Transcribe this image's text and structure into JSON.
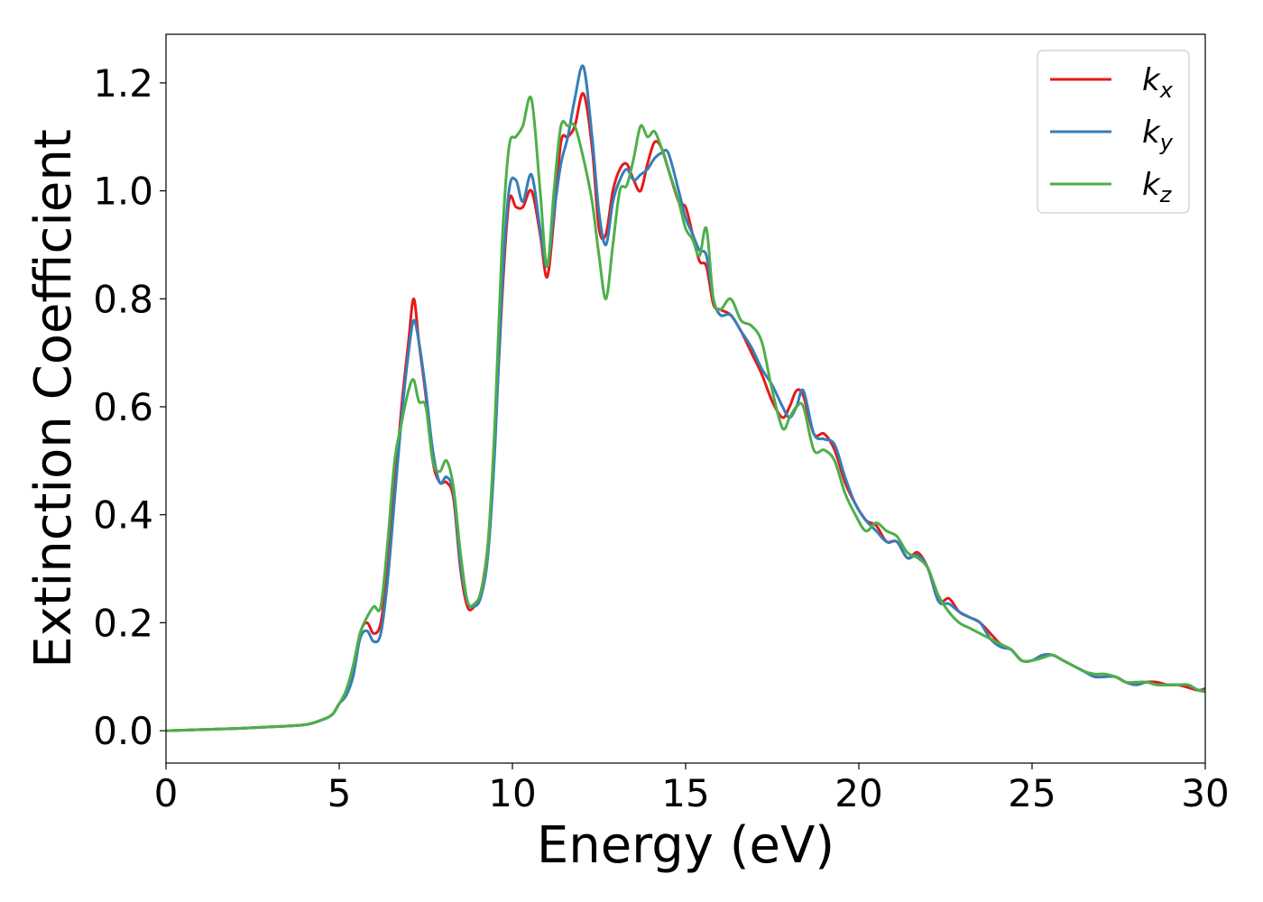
{
  "chart_data": {
    "type": "line",
    "xlabel": "Energy (eV)",
    "ylabel": "Extinction Coefficient",
    "xlim": [
      0,
      30
    ],
    "ylim": [
      -0.06,
      1.29
    ],
    "xticks": [
      0,
      5,
      10,
      15,
      20,
      25,
      30
    ],
    "yticks": [
      "0.0",
      "0.2",
      "0.4",
      "0.6",
      "0.8",
      "1.0",
      "1.2"
    ],
    "grid": false,
    "legend_position": "top-right",
    "series": [
      {
        "name": "k_x",
        "base": "k",
        "sub": "x",
        "color": "#e41a1c",
        "x": [
          0,
          1,
          2,
          3,
          4,
          4.5,
          4.8,
          5.0,
          5.2,
          5.4,
          5.6,
          5.8,
          6.0,
          6.2,
          6.4,
          6.6,
          6.8,
          7.0,
          7.15,
          7.3,
          7.5,
          7.7,
          7.9,
          8.1,
          8.3,
          8.5,
          8.7,
          8.9,
          9.1,
          9.3,
          9.5,
          9.7,
          9.9,
          10.1,
          10.3,
          10.55,
          10.8,
          11.0,
          11.2,
          11.4,
          11.6,
          11.8,
          12.05,
          12.3,
          12.5,
          12.7,
          12.9,
          13.1,
          13.3,
          13.5,
          13.7,
          13.9,
          14.1,
          14.3,
          14.5,
          14.8,
          15.0,
          15.2,
          15.4,
          15.6,
          15.8,
          16.0,
          16.3,
          16.6,
          16.9,
          17.2,
          17.5,
          17.8,
          18.0,
          18.2,
          18.4,
          18.7,
          19.0,
          19.3,
          19.6,
          19.9,
          20.2,
          20.5,
          20.8,
          21.1,
          21.4,
          21.7,
          22.0,
          22.3,
          22.6,
          22.9,
          23.2,
          23.5,
          23.8,
          24.1,
          24.4,
          24.7,
          25.0,
          25.3,
          25.6,
          25.9,
          26.2,
          26.5,
          26.8,
          27.1,
          27.4,
          27.7,
          28.0,
          28.3,
          28.6,
          28.9,
          29.2,
          29.5,
          29.8,
          30
        ],
        "y": [
          0.0,
          0.002,
          0.004,
          0.007,
          0.011,
          0.02,
          0.03,
          0.05,
          0.07,
          0.11,
          0.18,
          0.2,
          0.18,
          0.2,
          0.3,
          0.45,
          0.6,
          0.72,
          0.8,
          0.72,
          0.62,
          0.5,
          0.46,
          0.46,
          0.43,
          0.3,
          0.23,
          0.23,
          0.26,
          0.35,
          0.55,
          0.8,
          0.98,
          0.97,
          0.97,
          1.0,
          0.92,
          0.84,
          0.95,
          1.09,
          1.1,
          1.12,
          1.18,
          1.08,
          0.93,
          0.92,
          1.0,
          1.04,
          1.05,
          1.02,
          1.0,
          1.05,
          1.09,
          1.08,
          1.04,
          0.98,
          0.97,
          0.92,
          0.87,
          0.86,
          0.79,
          0.78,
          0.77,
          0.74,
          0.7,
          0.66,
          0.61,
          0.58,
          0.6,
          0.63,
          0.62,
          0.55,
          0.55,
          0.52,
          0.46,
          0.42,
          0.39,
          0.38,
          0.35,
          0.35,
          0.32,
          0.33,
          0.3,
          0.24,
          0.245,
          0.22,
          0.21,
          0.2,
          0.18,
          0.16,
          0.15,
          0.13,
          0.13,
          0.14,
          0.14,
          0.13,
          0.12,
          0.11,
          0.1,
          0.1,
          0.1,
          0.09,
          0.085,
          0.09,
          0.09,
          0.085,
          0.085,
          0.08,
          0.075,
          0.078
        ]
      },
      {
        "name": "k_y",
        "base": "k",
        "sub": "y",
        "color": "#377eb8",
        "x": [
          0,
          1,
          2,
          3,
          4,
          4.5,
          4.8,
          5.0,
          5.2,
          5.4,
          5.6,
          5.8,
          6.0,
          6.2,
          6.4,
          6.6,
          6.8,
          7.0,
          7.15,
          7.3,
          7.5,
          7.7,
          7.9,
          8.1,
          8.3,
          8.5,
          8.7,
          8.9,
          9.1,
          9.3,
          9.5,
          9.7,
          9.9,
          10.1,
          10.3,
          10.55,
          10.8,
          11.0,
          11.2,
          11.4,
          11.6,
          11.8,
          12.05,
          12.3,
          12.5,
          12.7,
          12.9,
          13.1,
          13.3,
          13.5,
          13.7,
          13.9,
          14.1,
          14.3,
          14.5,
          14.8,
          15.0,
          15.2,
          15.4,
          15.6,
          15.8,
          16.0,
          16.3,
          16.6,
          16.9,
          17.2,
          17.5,
          17.8,
          18.0,
          18.2,
          18.4,
          18.7,
          19.0,
          19.3,
          19.6,
          19.9,
          20.2,
          20.5,
          20.8,
          21.1,
          21.4,
          21.7,
          22.0,
          22.3,
          22.6,
          22.9,
          23.2,
          23.5,
          23.8,
          24.1,
          24.4,
          24.7,
          25.0,
          25.3,
          25.6,
          25.9,
          26.2,
          26.5,
          26.8,
          27.1,
          27.4,
          27.7,
          28.0,
          28.3,
          28.6,
          28.9,
          29.2,
          29.5,
          29.8,
          30
        ],
        "y": [
          0.0,
          0.002,
          0.004,
          0.007,
          0.011,
          0.02,
          0.03,
          0.05,
          0.065,
          0.1,
          0.17,
          0.185,
          0.165,
          0.18,
          0.28,
          0.43,
          0.58,
          0.7,
          0.76,
          0.72,
          0.63,
          0.52,
          0.46,
          0.47,
          0.44,
          0.31,
          0.24,
          0.23,
          0.25,
          0.33,
          0.53,
          0.82,
          1.0,
          1.02,
          0.98,
          1.03,
          0.93,
          0.86,
          0.96,
          1.05,
          1.1,
          1.17,
          1.23,
          1.1,
          0.96,
          0.9,
          0.98,
          1.02,
          1.04,
          1.02,
          1.03,
          1.04,
          1.06,
          1.07,
          1.07,
          1.0,
          0.95,
          0.92,
          0.89,
          0.88,
          0.8,
          0.77,
          0.77,
          0.74,
          0.71,
          0.67,
          0.64,
          0.6,
          0.58,
          0.6,
          0.63,
          0.55,
          0.54,
          0.53,
          0.47,
          0.42,
          0.39,
          0.37,
          0.35,
          0.35,
          0.32,
          0.325,
          0.3,
          0.24,
          0.235,
          0.22,
          0.21,
          0.2,
          0.17,
          0.155,
          0.15,
          0.13,
          0.13,
          0.14,
          0.14,
          0.13,
          0.12,
          0.11,
          0.1,
          0.1,
          0.1,
          0.09,
          0.085,
          0.09,
          0.085,
          0.085,
          0.085,
          0.085,
          0.075,
          0.075
        ]
      },
      {
        "name": "k_z",
        "base": "k",
        "sub": "z",
        "color": "#4daf4a",
        "x": [
          0,
          1,
          2,
          3,
          4,
          4.5,
          4.8,
          5.0,
          5.2,
          5.4,
          5.6,
          5.8,
          6.0,
          6.2,
          6.4,
          6.6,
          6.8,
          7.0,
          7.15,
          7.3,
          7.5,
          7.7,
          7.9,
          8.1,
          8.3,
          8.5,
          8.7,
          8.9,
          9.1,
          9.3,
          9.5,
          9.7,
          9.9,
          10.1,
          10.3,
          10.55,
          10.8,
          11.0,
          11.2,
          11.4,
          11.6,
          11.8,
          12.05,
          12.3,
          12.5,
          12.7,
          12.9,
          13.1,
          13.3,
          13.5,
          13.7,
          13.9,
          14.1,
          14.3,
          14.5,
          14.8,
          15.0,
          15.2,
          15.4,
          15.6,
          15.8,
          16.0,
          16.3,
          16.6,
          16.9,
          17.2,
          17.5,
          17.8,
          18.0,
          18.2,
          18.4,
          18.7,
          19.0,
          19.3,
          19.6,
          19.9,
          20.2,
          20.5,
          20.8,
          21.1,
          21.4,
          21.7,
          22.0,
          22.3,
          22.6,
          22.9,
          23.2,
          23.5,
          23.8,
          24.1,
          24.4,
          24.7,
          25.0,
          25.3,
          25.6,
          25.9,
          26.2,
          26.5,
          26.8,
          27.1,
          27.4,
          27.7,
          28.0,
          28.3,
          28.6,
          28.9,
          29.2,
          29.5,
          29.8,
          30
        ],
        "y": [
          0.0,
          0.002,
          0.004,
          0.007,
          0.011,
          0.02,
          0.03,
          0.05,
          0.075,
          0.12,
          0.18,
          0.21,
          0.23,
          0.23,
          0.35,
          0.5,
          0.57,
          0.63,
          0.65,
          0.61,
          0.6,
          0.5,
          0.48,
          0.5,
          0.45,
          0.33,
          0.24,
          0.235,
          0.26,
          0.35,
          0.58,
          0.9,
          1.08,
          1.1,
          1.12,
          1.17,
          1.0,
          0.86,
          1.0,
          1.12,
          1.12,
          1.12,
          1.06,
          0.98,
          0.88,
          0.8,
          0.9,
          1.0,
          1.01,
          1.06,
          1.12,
          1.1,
          1.11,
          1.08,
          1.04,
          0.98,
          0.93,
          0.91,
          0.88,
          0.93,
          0.8,
          0.78,
          0.8,
          0.76,
          0.75,
          0.72,
          0.63,
          0.56,
          0.58,
          0.6,
          0.6,
          0.52,
          0.52,
          0.5,
          0.44,
          0.4,
          0.37,
          0.385,
          0.37,
          0.36,
          0.33,
          0.32,
          0.3,
          0.25,
          0.22,
          0.2,
          0.19,
          0.18,
          0.17,
          0.16,
          0.15,
          0.13,
          0.13,
          0.135,
          0.14,
          0.13,
          0.12,
          0.11,
          0.105,
          0.105,
          0.1,
          0.09,
          0.09,
          0.09,
          0.085,
          0.085,
          0.085,
          0.085,
          0.075,
          0.072
        ]
      }
    ]
  }
}
